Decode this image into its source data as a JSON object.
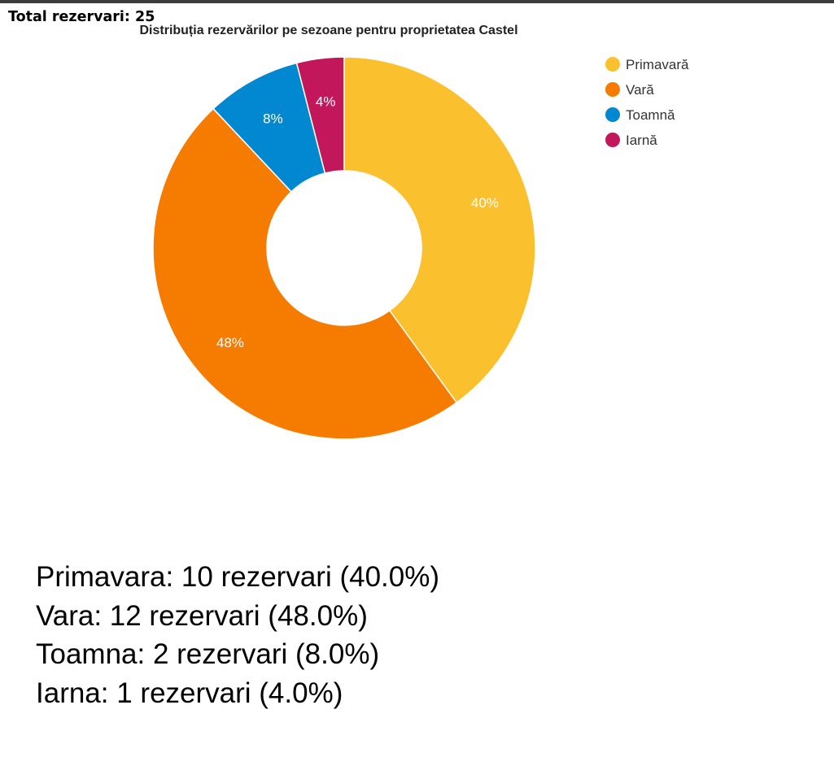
{
  "total_text": "Total rezervari: 25",
  "chart_data": {
    "type": "pie",
    "title": "Distribuția rezervărilor pe sezoane pentru proprietatea Castel",
    "categories": [
      "Primavară",
      "Vară",
      "Toamnă",
      "Iarnă"
    ],
    "values": [
      10,
      12,
      2,
      1
    ],
    "percent_labels": [
      "40%",
      "48%",
      "8%",
      "4%"
    ],
    "colors": [
      "#FBC02D",
      "#F57C00",
      "#0288D1",
      "#C2185B"
    ],
    "donut": true,
    "legend_position": "right"
  },
  "summary": [
    "Primavara: 10 rezervari (40.0%)",
    "Vara: 12 rezervari (48.0%)",
    "Toamna: 2 rezervari (8.0%)",
    "Iarna: 1 rezervari (4.0%)"
  ]
}
